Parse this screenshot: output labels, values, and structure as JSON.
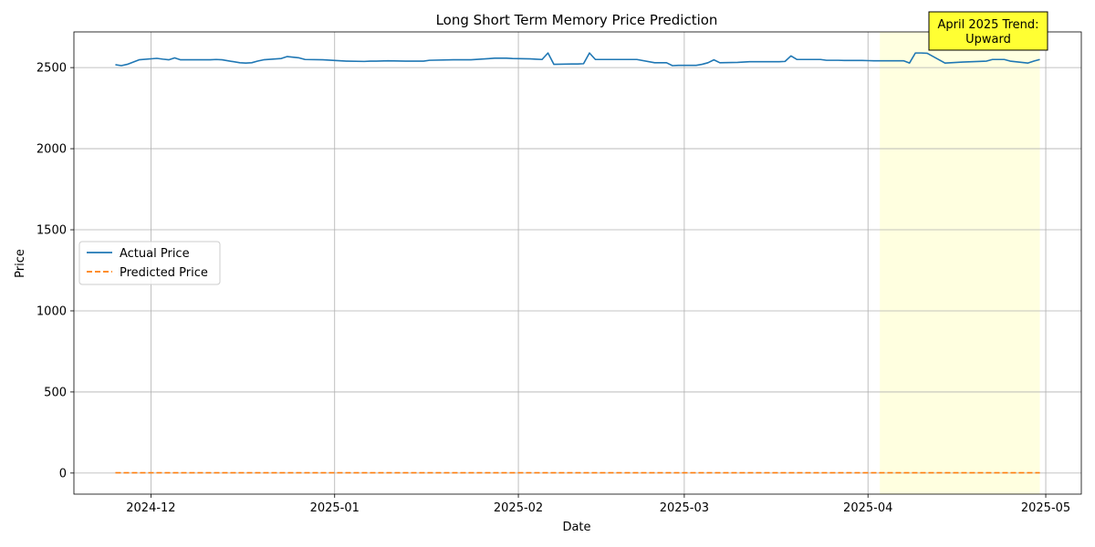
{
  "chart_data": {
    "type": "line",
    "title": "Long Short Term Memory Price Prediction",
    "xlabel": "Date",
    "ylabel": "Price",
    "x_range": [
      "2024-11-18",
      "2025-05-07"
    ],
    "ylim": [
      -130,
      2720
    ],
    "grid": true,
    "legend_position": "center-left",
    "x_ticks": [
      "2024-12-01",
      "2025-01-01",
      "2025-02-01",
      "2025-03-01",
      "2025-04-01",
      "2025-05-01"
    ],
    "x_tick_labels": [
      "2024-12",
      "2025-01",
      "2025-02",
      "2025-03",
      "2025-04",
      "2025-05"
    ],
    "y_ticks": [
      0,
      500,
      1000,
      1500,
      2000,
      2500
    ],
    "y_tick_labels": [
      "0",
      "500",
      "1000",
      "1500",
      "2000",
      "2500"
    ],
    "highlight": {
      "start": "2025-04-03",
      "end": "2025-04-30",
      "color": "#ffffe0",
      "annotation_lines": [
        "April 2025 Trend:",
        "Upward"
      ],
      "annotation_color": "#ffff33"
    },
    "series": [
      {
        "name": "Actual Price",
        "color": "#1f77b4",
        "dash": "solid",
        "x": [
          "2024-11-25",
          "2024-11-26",
          "2024-11-27",
          "2024-11-29",
          "2024-12-02",
          "2024-12-03",
          "2024-12-04",
          "2024-12-05",
          "2024-12-06",
          "2024-12-09",
          "2024-12-10",
          "2024-12-11",
          "2024-12-12",
          "2024-12-13",
          "2024-12-16",
          "2024-12-17",
          "2024-12-18",
          "2024-12-19",
          "2024-12-20",
          "2024-12-23",
          "2024-12-24",
          "2024-12-26",
          "2024-12-27",
          "2024-12-30",
          "2024-12-31",
          "2025-01-02",
          "2025-01-03",
          "2025-01-06",
          "2025-01-07",
          "2025-01-08",
          "2025-01-10",
          "2025-01-13",
          "2025-01-14",
          "2025-01-15",
          "2025-01-16",
          "2025-01-17",
          "2025-01-21",
          "2025-01-22",
          "2025-01-23",
          "2025-01-24",
          "2025-01-27",
          "2025-01-28",
          "2025-01-29",
          "2025-01-30",
          "2025-01-31",
          "2025-02-03",
          "2025-02-04",
          "2025-02-05",
          "2025-02-06",
          "2025-02-07",
          "2025-02-10",
          "2025-02-11",
          "2025-02-12",
          "2025-02-13",
          "2025-02-14",
          "2025-02-18",
          "2025-02-19",
          "2025-02-20",
          "2025-02-21",
          "2025-02-24",
          "2025-02-25",
          "2025-02-26",
          "2025-02-27",
          "2025-02-28",
          "2025-03-03",
          "2025-03-04",
          "2025-03-05",
          "2025-03-06",
          "2025-03-07",
          "2025-03-10",
          "2025-03-11",
          "2025-03-12",
          "2025-03-13",
          "2025-03-14",
          "2025-03-17",
          "2025-03-18",
          "2025-03-19",
          "2025-03-20",
          "2025-03-21",
          "2025-03-24",
          "2025-03-25",
          "2025-03-26",
          "2025-03-27",
          "2025-03-28",
          "2025-03-31",
          "2025-04-01",
          "2025-04-02",
          "2025-04-03",
          "2025-04-04",
          "2025-04-07",
          "2025-04-08",
          "2025-04-09",
          "2025-04-10",
          "2025-04-11",
          "2025-04-14",
          "2025-04-15",
          "2025-04-16",
          "2025-04-17",
          "2025-04-21",
          "2025-04-22",
          "2025-04-23",
          "2025-04-24",
          "2025-04-25",
          "2025-04-28",
          "2025-04-29",
          "2025-04-30"
        ],
        "y": [
          2518,
          2512,
          2520,
          2548,
          2557,
          2552,
          2548,
          2560,
          2548,
          2548,
          2548,
          2548,
          2550,
          2548,
          2530,
          2528,
          2530,
          2540,
          2548,
          2556,
          2568,
          2560,
          2550,
          2548,
          2546,
          2542,
          2540,
          2538,
          2540,
          2540,
          2542,
          2540,
          2540,
          2540,
          2540,
          2545,
          2548,
          2548,
          2548,
          2548,
          2555,
          2558,
          2558,
          2558,
          2556,
          2554,
          2552,
          2550,
          2590,
          2520,
          2522,
          2522,
          2524,
          2590,
          2550,
          2550,
          2550,
          2550,
          2550,
          2530,
          2530,
          2530,
          2512,
          2514,
          2514,
          2520,
          2530,
          2548,
          2530,
          2532,
          2534,
          2536,
          2536,
          2536,
          2536,
          2538,
          2572,
          2550,
          2550,
          2550,
          2545,
          2545,
          2545,
          2544,
          2544,
          2543,
          2542,
          2542,
          2542,
          2542,
          2528,
          2590,
          2590,
          2588,
          2528,
          2530,
          2532,
          2534,
          2540,
          2550,
          2550,
          2550,
          2540,
          2528,
          2540,
          2550
        ]
      },
      {
        "name": "Predicted Price",
        "color": "#ff7f0e",
        "dash": "dashed",
        "x": [
          "2024-11-25",
          "2025-04-30"
        ],
        "y": [
          2,
          2
        ]
      }
    ]
  }
}
